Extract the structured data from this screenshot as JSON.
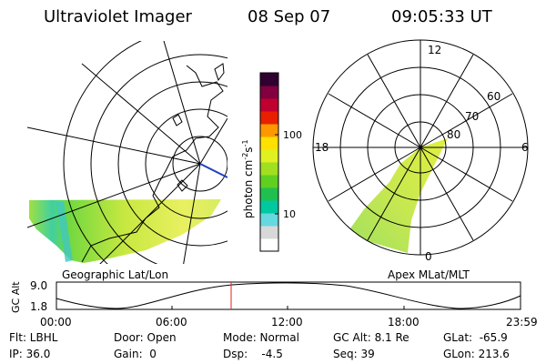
{
  "header": {
    "title": "Ultraviolet Imager",
    "date": "08 Sep 07",
    "time": "09:05:33 UT"
  },
  "left_panel": {
    "label": "Geographic Lat/Lon"
  },
  "right_panel": {
    "label": "Apex MLat/MLT",
    "mlt_labels": [
      "12",
      "18",
      "6",
      "0"
    ],
    "lat_labels": [
      "60",
      "70",
      "80"
    ]
  },
  "colorbar": {
    "unit_label": "photon cm",
    "unit_sup1": "-2",
    "unit_s": "s",
    "unit_sup2": "-1",
    "ticks": [
      "100",
      "10"
    ],
    "scale": "log",
    "colors": [
      "#ffffff",
      "#d8d8d8",
      "#66d8e0",
      "#00c8a0",
      "#20c050",
      "#60d020",
      "#a0e020",
      "#e0f020",
      "#ffe000",
      "#ff9800",
      "#e82000",
      "#c00030",
      "#800040",
      "#300030"
    ]
  },
  "altitude_plot": {
    "ylabel": "GC Alt",
    "yticks": [
      "9.0",
      "1.8"
    ],
    "xticks": [
      "00:00",
      "06:00",
      "12:00",
      "18:00",
      "23:59"
    ],
    "marker_time": "09:05",
    "marker_color": "#e02020"
  },
  "info": {
    "flt": "Flt: LBHL",
    "ip": "IP: 36.0",
    "door": "Door: Open",
    "gain": "Gain:  0",
    "mode": "Mode: Normal",
    "dsp": "Dsp:    -4.5",
    "gcalt": "GC Alt: 8.1 Re",
    "seq": "Seq: 39",
    "glat": "GLat:  -65.9",
    "glon": "GLon: 213.6"
  },
  "chart_data": [
    {
      "type": "heatmap",
      "title": "Geographic Lat/Lon",
      "colorscale": "log",
      "color_range": [
        3,
        1000
      ],
      "colorbar_ticks": [
        10,
        100
      ]
    },
    {
      "type": "heatmap",
      "title": "Apex MLat/MLT",
      "mlt_ticks": [
        0,
        6,
        12,
        18
      ],
      "mlat_ticks": [
        60,
        70,
        80
      ]
    },
    {
      "type": "line",
      "ylabel": "GC Alt",
      "yticks": [
        1.8,
        9.0
      ],
      "xlim": [
        "00:00",
        "23:59"
      ],
      "marker_x": "09:05"
    }
  ]
}
